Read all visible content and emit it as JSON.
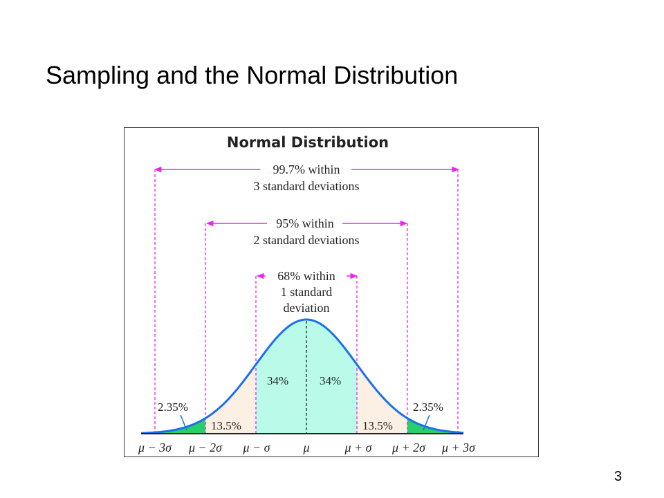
{
  "slide": {
    "title": "Sampling and the Normal Distribution",
    "page_number": "3"
  },
  "figure": {
    "title": "Normal Distribution",
    "colors": {
      "curve": "#1a6ff0",
      "guides": "#ee22ee",
      "band_1sd": "#b9fbe8",
      "band_2sd": "#fcefe3",
      "band_3sd": "#28d06a",
      "frame": "#333333"
    },
    "ranges": [
      {
        "line1": "99.7% within",
        "line2": "3 standard deviations"
      },
      {
        "line1": "95% within",
        "line2": "2 standard deviations"
      },
      {
        "line1": "68% within",
        "line2": "1 standard",
        "line3": "deviation"
      }
    ],
    "region_labels": {
      "left_inner": "34%",
      "right_inner": "34%",
      "left_middle": "13.5%",
      "right_middle": "13.5%",
      "left_outer": "2.35%",
      "right_outer": "2.35%"
    },
    "axis_labels": [
      "μ − 3σ",
      "μ − 2σ",
      "μ − σ",
      "μ",
      "μ + σ",
      "μ + 2σ",
      "μ + 3σ"
    ]
  }
}
